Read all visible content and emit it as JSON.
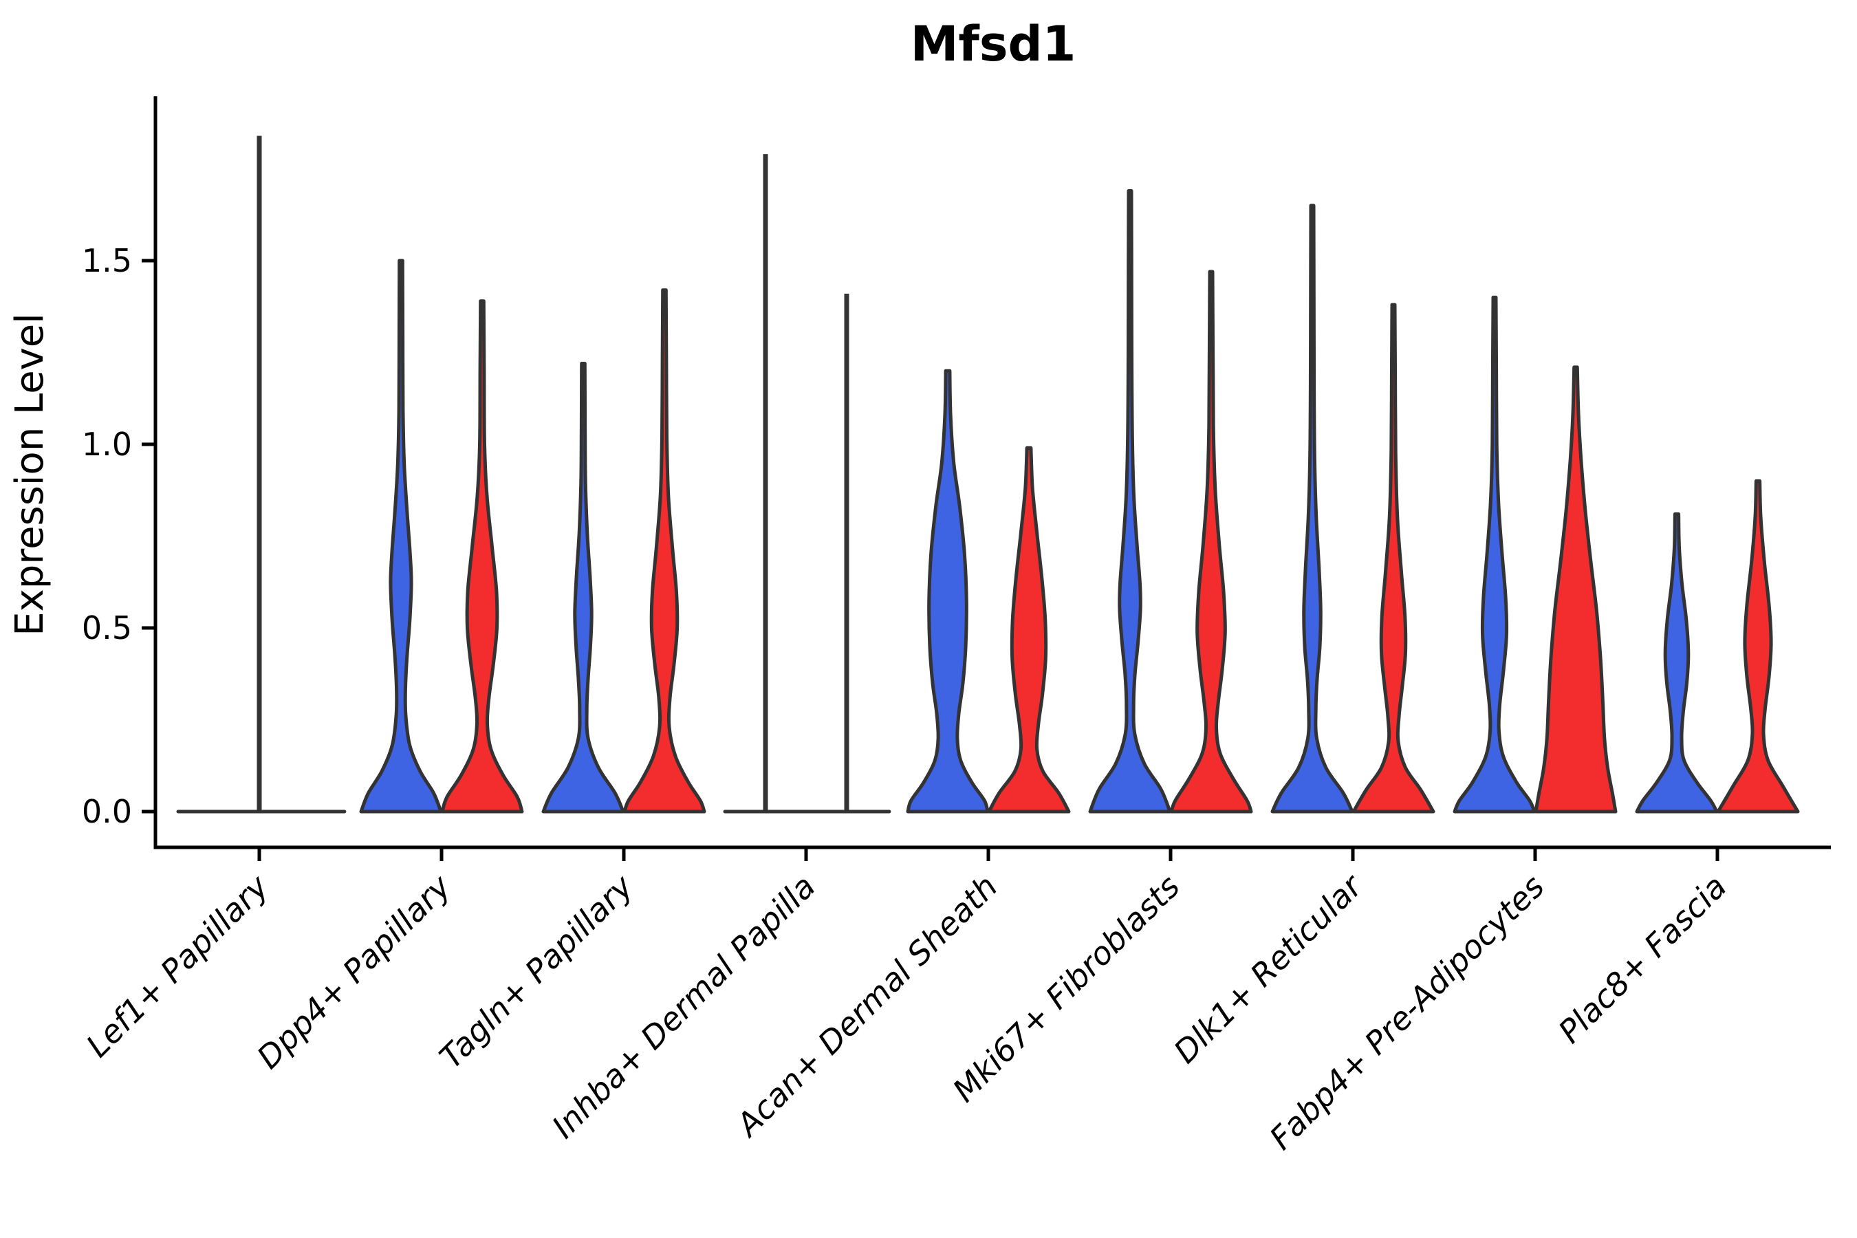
{
  "chart_data": {
    "type": "violin",
    "title": "Mfsd1",
    "ylabel": "Expression Level",
    "xlabel": "",
    "ylim": [
      -0.1,
      1.95
    ],
    "yticks": [
      0.0,
      0.5,
      1.0,
      1.5
    ],
    "ytick_labels": [
      "0.0",
      "0.5",
      "1.0",
      "1.5"
    ],
    "grid": false,
    "legend": "none",
    "groups": [
      {
        "id": "blue",
        "color": "#3E64E4"
      },
      {
        "id": "red",
        "color": "#F32D2D"
      }
    ],
    "outline_color": "#333333",
    "axis_color": "#000000",
    "categories": [
      {
        "label": "Lef1+ Papillary",
        "violins": [
          {
            "style": "spike",
            "group": "both",
            "offset": 0,
            "max": 1.84,
            "flat": [
              -2.0,
              2.1
            ]
          }
        ]
      },
      {
        "label": "Dpp4+ Papillary",
        "violins": [
          {
            "style": "density",
            "group": "blue",
            "offset": -1,
            "max": 1.5,
            "profile": [
              [
                1.5,
                0.04
              ],
              [
                1.3,
                0.045
              ],
              [
                1.1,
                0.05
              ],
              [
                0.95,
                0.08
              ],
              [
                0.82,
                0.15
              ],
              [
                0.7,
                0.23
              ],
              [
                0.62,
                0.26
              ],
              [
                0.52,
                0.22
              ],
              [
                0.42,
                0.15
              ],
              [
                0.33,
                0.11
              ],
              [
                0.26,
                0.12
              ],
              [
                0.18,
                0.22
              ],
              [
                0.11,
                0.48
              ],
              [
                0.05,
                0.82
              ],
              [
                0,
                1
              ]
            ]
          },
          {
            "style": "density",
            "group": "red",
            "offset": 1,
            "max": 1.39,
            "profile": [
              [
                1.39,
                0.04
              ],
              [
                1.2,
                0.05
              ],
              [
                1.0,
                0.06
              ],
              [
                0.86,
                0.12
              ],
              [
                0.72,
                0.25
              ],
              [
                0.6,
                0.36
              ],
              [
                0.5,
                0.37
              ],
              [
                0.4,
                0.28
              ],
              [
                0.31,
                0.17
              ],
              [
                0.24,
                0.13
              ],
              [
                0.17,
                0.22
              ],
              [
                0.1,
                0.52
              ],
              [
                0.04,
                0.88
              ],
              [
                0,
                1
              ]
            ]
          }
        ]
      },
      {
        "label": "Tagln+ Papillary",
        "violins": [
          {
            "style": "density",
            "group": "blue",
            "offset": -1,
            "max": 1.22,
            "profile": [
              [
                1.22,
                0.04
              ],
              [
                1.05,
                0.045
              ],
              [
                0.9,
                0.055
              ],
              [
                0.76,
                0.1
              ],
              [
                0.64,
                0.17
              ],
              [
                0.54,
                0.21
              ],
              [
                0.45,
                0.18
              ],
              [
                0.36,
                0.12
              ],
              [
                0.28,
                0.09
              ],
              [
                0.2,
                0.12
              ],
              [
                0.12,
                0.38
              ],
              [
                0.05,
                0.8
              ],
              [
                0,
                1
              ]
            ]
          },
          {
            "style": "density",
            "group": "red",
            "offset": 1,
            "max": 1.42,
            "profile": [
              [
                1.42,
                0.04
              ],
              [
                1.22,
                0.05
              ],
              [
                1.02,
                0.06
              ],
              [
                0.86,
                0.1
              ],
              [
                0.72,
                0.2
              ],
              [
                0.6,
                0.3
              ],
              [
                0.5,
                0.32
              ],
              [
                0.4,
                0.24
              ],
              [
                0.31,
                0.14
              ],
              [
                0.23,
                0.12
              ],
              [
                0.15,
                0.28
              ],
              [
                0.08,
                0.6
              ],
              [
                0.03,
                0.9
              ],
              [
                0,
                1
              ]
            ]
          }
        ]
      },
      {
        "label": "Inhba+ Dermal Papilla",
        "violins": [
          {
            "style": "spike",
            "group": "blue",
            "offset": -1,
            "max": 1.79,
            "flat": [
              -2.0,
              0.0
            ]
          },
          {
            "style": "spike",
            "group": "red",
            "offset": 1,
            "max": 1.41,
            "flat": [
              0.0,
              2.05
            ]
          }
        ]
      },
      {
        "label": "Acan+ Dermal Sheath",
        "violins": [
          {
            "style": "density",
            "group": "blue",
            "offset": -1,
            "max": 1.2,
            "profile": [
              [
                1.2,
                0.05
              ],
              [
                1.08,
                0.07
              ],
              [
                0.95,
                0.15
              ],
              [
                0.83,
                0.3
              ],
              [
                0.7,
                0.42
              ],
              [
                0.57,
                0.47
              ],
              [
                0.45,
                0.45
              ],
              [
                0.35,
                0.38
              ],
              [
                0.27,
                0.28
              ],
              [
                0.2,
                0.24
              ],
              [
                0.14,
                0.32
              ],
              [
                0.08,
                0.6
              ],
              [
                0.03,
                0.92
              ],
              [
                0,
                1
              ]
            ]
          },
          {
            "style": "density",
            "group": "red",
            "offset": 1,
            "max": 0.99,
            "profile": [
              [
                0.99,
                0.05
              ],
              [
                0.88,
                0.09
              ],
              [
                0.76,
                0.2
              ],
              [
                0.63,
                0.33
              ],
              [
                0.52,
                0.41
              ],
              [
                0.42,
                0.42
              ],
              [
                0.32,
                0.34
              ],
              [
                0.24,
                0.24
              ],
              [
                0.17,
                0.2
              ],
              [
                0.11,
                0.35
              ],
              [
                0.05,
                0.75
              ],
              [
                0,
                1
              ]
            ]
          }
        ]
      },
      {
        "label": "Mki67+ Fibroblasts",
        "violins": [
          {
            "style": "density",
            "group": "blue",
            "offset": -1,
            "max": 1.69,
            "profile": [
              [
                1.69,
                0.035
              ],
              [
                1.45,
                0.04
              ],
              [
                1.2,
                0.045
              ],
              [
                1.0,
                0.06
              ],
              [
                0.85,
                0.1
              ],
              [
                0.72,
                0.18
              ],
              [
                0.62,
                0.25
              ],
              [
                0.55,
                0.26
              ],
              [
                0.46,
                0.2
              ],
              [
                0.37,
                0.12
              ],
              [
                0.29,
                0.09
              ],
              [
                0.21,
                0.12
              ],
              [
                0.13,
                0.36
              ],
              [
                0.06,
                0.78
              ],
              [
                0,
                1
              ]
            ]
          },
          {
            "style": "density",
            "group": "red",
            "offset": 1,
            "max": 1.47,
            "profile": [
              [
                1.47,
                0.035
              ],
              [
                1.25,
                0.045
              ],
              [
                1.05,
                0.055
              ],
              [
                0.88,
                0.1
              ],
              [
                0.73,
                0.2
              ],
              [
                0.6,
                0.31
              ],
              [
                0.49,
                0.35
              ],
              [
                0.39,
                0.28
              ],
              [
                0.3,
                0.18
              ],
              [
                0.23,
                0.13
              ],
              [
                0.16,
                0.22
              ],
              [
                0.09,
                0.55
              ],
              [
                0.03,
                0.9
              ],
              [
                0,
                1
              ]
            ]
          }
        ]
      },
      {
        "label": "Dlk1+ Reticular",
        "violins": [
          {
            "style": "density",
            "group": "blue",
            "offset": -1,
            "max": 1.65,
            "profile": [
              [
                1.65,
                0.035
              ],
              [
                1.4,
                0.04
              ],
              [
                1.15,
                0.045
              ],
              [
                0.95,
                0.06
              ],
              [
                0.8,
                0.1
              ],
              [
                0.66,
                0.17
              ],
              [
                0.55,
                0.21
              ],
              [
                0.45,
                0.19
              ],
              [
                0.36,
                0.12
              ],
              [
                0.28,
                0.09
              ],
              [
                0.2,
                0.11
              ],
              [
                0.12,
                0.34
              ],
              [
                0.05,
                0.78
              ],
              [
                0,
                1
              ]
            ]
          },
          {
            "style": "density",
            "group": "red",
            "offset": 1,
            "max": 1.38,
            "profile": [
              [
                1.38,
                0.035
              ],
              [
                1.18,
                0.045
              ],
              [
                0.98,
                0.055
              ],
              [
                0.8,
                0.1
              ],
              [
                0.65,
                0.2
              ],
              [
                0.53,
                0.29
              ],
              [
                0.43,
                0.3
              ],
              [
                0.34,
                0.22
              ],
              [
                0.26,
                0.14
              ],
              [
                0.19,
                0.12
              ],
              [
                0.12,
                0.3
              ],
              [
                0.06,
                0.68
              ],
              [
                0,
                1
              ]
            ]
          }
        ]
      },
      {
        "label": "Fabp4+ Pre-Adipocytes",
        "violins": [
          {
            "style": "density",
            "group": "blue",
            "offset": -1,
            "max": 1.4,
            "profile": [
              [
                1.4,
                0.035
              ],
              [
                1.2,
                0.045
              ],
              [
                1.0,
                0.055
              ],
              [
                0.84,
                0.1
              ],
              [
                0.7,
                0.19
              ],
              [
                0.58,
                0.28
              ],
              [
                0.48,
                0.3
              ],
              [
                0.38,
                0.22
              ],
              [
                0.29,
                0.13
              ],
              [
                0.22,
                0.11
              ],
              [
                0.15,
                0.22
              ],
              [
                0.08,
                0.55
              ],
              [
                0.03,
                0.88
              ],
              [
                0,
                1
              ]
            ]
          },
          {
            "style": "density",
            "group": "red",
            "offset": 1,
            "max": 1.21,
            "profile": [
              [
                1.21,
                0.04
              ],
              [
                1.08,
                0.07
              ],
              [
                0.95,
                0.14
              ],
              [
                0.82,
                0.24
              ],
              [
                0.68,
                0.38
              ],
              [
                0.55,
                0.52
              ],
              [
                0.42,
                0.62
              ],
              [
                0.3,
                0.68
              ],
              [
                0.2,
                0.72
              ],
              [
                0.12,
                0.8
              ],
              [
                0.05,
                0.92
              ],
              [
                0,
                1
              ]
            ]
          }
        ]
      },
      {
        "label": "Plac8+ Fascia",
        "violins": [
          {
            "style": "density",
            "group": "blue",
            "offset": -1,
            "max": 0.81,
            "profile": [
              [
                0.81,
                0.045
              ],
              [
                0.72,
                0.06
              ],
              [
                0.62,
                0.13
              ],
              [
                0.52,
                0.24
              ],
              [
                0.43,
                0.29
              ],
              [
                0.35,
                0.25
              ],
              [
                0.27,
                0.16
              ],
              [
                0.2,
                0.12
              ],
              [
                0.14,
                0.18
              ],
              [
                0.08,
                0.5
              ],
              [
                0.03,
                0.85
              ],
              [
                0,
                1
              ]
            ]
          },
          {
            "style": "density",
            "group": "red",
            "offset": 1,
            "max": 0.9,
            "profile": [
              [
                0.9,
                0.045
              ],
              [
                0.8,
                0.07
              ],
              [
                0.68,
                0.16
              ],
              [
                0.56,
                0.28
              ],
              [
                0.46,
                0.33
              ],
              [
                0.37,
                0.28
              ],
              [
                0.28,
                0.18
              ],
              [
                0.21,
                0.14
              ],
              [
                0.14,
                0.25
              ],
              [
                0.07,
                0.62
              ],
              [
                0,
                1
              ]
            ]
          }
        ]
      }
    ]
  }
}
